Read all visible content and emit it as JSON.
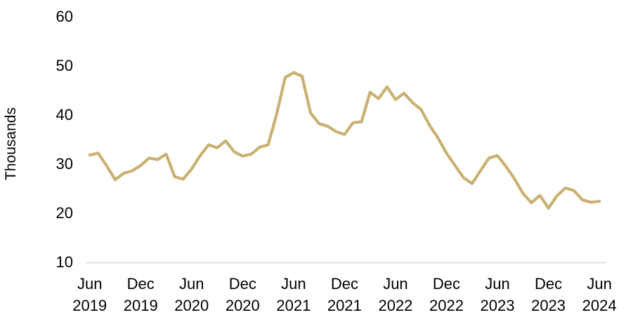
{
  "chart_data": {
    "type": "line",
    "title": "",
    "xlabel": "",
    "ylabel": "Thousands",
    "ylim": [
      10,
      60
    ],
    "y_ticks": [
      60,
      50,
      40,
      30,
      20,
      10
    ],
    "x_tick_labels": [
      [
        "Jun",
        "2019"
      ],
      [
        "Dec",
        "2019"
      ],
      [
        "Jun",
        "2020"
      ],
      [
        "Dec",
        "2020"
      ],
      [
        "Jun",
        "2021"
      ],
      [
        "Dec",
        "2021"
      ],
      [
        "Jun",
        "2022"
      ],
      [
        "Dec",
        "2022"
      ],
      [
        "Jun",
        "2023"
      ],
      [
        "Dec",
        "2023"
      ],
      [
        "Jun",
        "2024"
      ]
    ],
    "x_start": "Jun 2019",
    "x_end": "Jun 2024",
    "frequency": "monthly",
    "grid": false,
    "legend": "none",
    "series": [
      {
        "name": "Thousands",
        "color": "#C9B172",
        "values": [
          31.7,
          32.1,
          29.5,
          26.7,
          28.0,
          28.5,
          29.6,
          31.1,
          30.8,
          31.9,
          27.3,
          26.8,
          28.9,
          31.6,
          33.8,
          33.2,
          34.6,
          32.4,
          31.5,
          31.9,
          33.3,
          33.8,
          40.0,
          47.5,
          48.5,
          47.8,
          40.3,
          38.1,
          37.6,
          36.5,
          35.9,
          38.3,
          38.5,
          44.5,
          43.2,
          45.6,
          43.0,
          44.3,
          42.4,
          41.0,
          37.8,
          35.2,
          32.1,
          29.6,
          27.1,
          25.9,
          28.5,
          31.1,
          31.6,
          29.4,
          26.9,
          23.9,
          22.0,
          23.5,
          20.9,
          23.4,
          25.0,
          24.5,
          22.6,
          22.1,
          22.3
        ]
      }
    ],
    "colors": {
      "line": "#C9B172",
      "axis_line": "#D9D9D9",
      "text": "#000000",
      "background": "#FFFFFF"
    }
  }
}
